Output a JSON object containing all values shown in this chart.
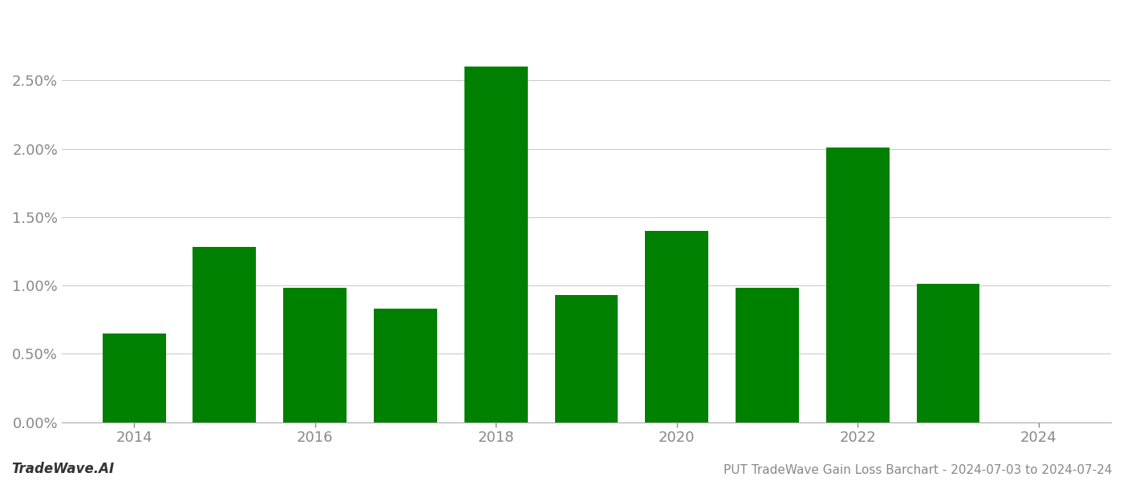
{
  "years": [
    2014,
    2015,
    2016,
    2017,
    2018,
    2019,
    2020,
    2021,
    2022,
    2023
  ],
  "values": [
    0.0065,
    0.0128,
    0.0098,
    0.0083,
    0.026,
    0.0093,
    0.014,
    0.0098,
    0.0201,
    0.0101
  ],
  "bar_color": "#008000",
  "background_color": "#ffffff",
  "grid_color": "#cccccc",
  "axis_color": "#aaaaaa",
  "footer_left": "TradeWave.AI",
  "footer_right": "PUT TradeWave Gain Loss Barchart - 2024-07-03 to 2024-07-24",
  "ylim": [
    0,
    0.03
  ],
  "yticks": [
    0.0,
    0.005,
    0.01,
    0.015,
    0.02,
    0.025
  ],
  "xticks": [
    2014,
    2016,
    2018,
    2020,
    2022,
    2024
  ],
  "xlim": [
    2013.2,
    2024.8
  ],
  "bar_width": 0.7,
  "figsize": [
    14.0,
    6.0
  ],
  "dpi": 100
}
